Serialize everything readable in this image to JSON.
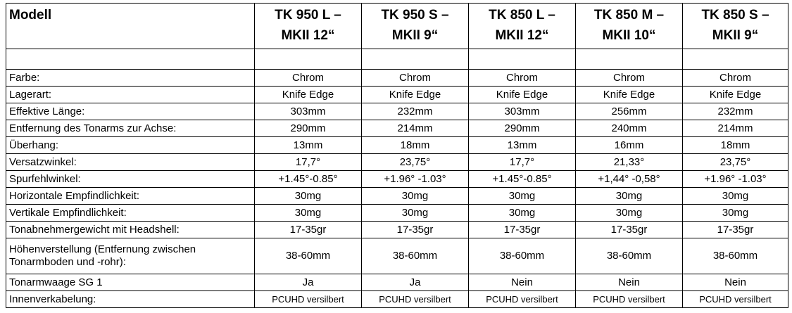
{
  "table": {
    "header": {
      "label": "Modell",
      "models": [
        [
          "TK 950 L –",
          "MKII 12“"
        ],
        [
          "TK 950 S –",
          "MKII 9“"
        ],
        [
          "TK 850 L –",
          "MKII 12“"
        ],
        [
          "TK 850 M –",
          "MKII 10“"
        ],
        [
          "TK 850 S –",
          "MKII 9“"
        ]
      ]
    },
    "rows": [
      [
        "Farbe:",
        "Chrom",
        "Chrom",
        "Chrom",
        "Chrom",
        "Chrom"
      ],
      [
        "Lagerart:",
        "Knife Edge",
        "Knife Edge",
        "Knife Edge",
        "Knife Edge",
        "Knife Edge"
      ],
      [
        "Effektive Länge:",
        "303mm",
        "232mm",
        "303mm",
        "256mm",
        "232mm"
      ],
      [
        "Entfernung des Tonarms zur Achse:",
        "290mm",
        "214mm",
        "290mm",
        "240mm",
        "214mm"
      ],
      [
        "Überhang:",
        "13mm",
        "18mm",
        "13mm",
        "16mm",
        "18mm"
      ],
      [
        "Versatzwinkel:",
        "17,7°",
        "23,75°",
        "17,7°",
        "21,33°",
        "23,75°"
      ],
      [
        "Spurfehlwinkel:",
        "+1.45°-0.85°",
        "+1.96° -1.03°",
        "+1.45°-0.85°",
        "+1,44° -0,58°",
        "+1.96° -1.03°"
      ],
      [
        "Horizontale Empfindlichkeit:",
        "30mg",
        "30mg",
        "30mg",
        "30mg",
        "30mg"
      ],
      [
        "Vertikale Empfindlichkeit:",
        "30mg",
        "30mg",
        "30mg",
        "30mg",
        "30mg"
      ],
      [
        "Tonabnehmergewicht mit Headshell:",
        "17-35gr",
        "17-35gr",
        "17-35gr",
        "17-35gr",
        "17-35gr"
      ],
      [
        "Höhenverstellung (Entfernung zwischen Tonarmboden und -rohr):",
        "38-60mm",
        "38-60mm",
        "38-60mm",
        "38-60mm",
        "38-60mm"
      ],
      [
        "Tonarmwaage SG 1",
        "Ja",
        "Ja",
        "Nein",
        "Nein",
        "Nein"
      ],
      [
        "Innenverkabelung:",
        "PCUHD versilbert",
        "PCUHD versilbert",
        "PCUHD versilbert",
        "PCUHD versilbert",
        "PCUHD versilbert"
      ]
    ]
  }
}
